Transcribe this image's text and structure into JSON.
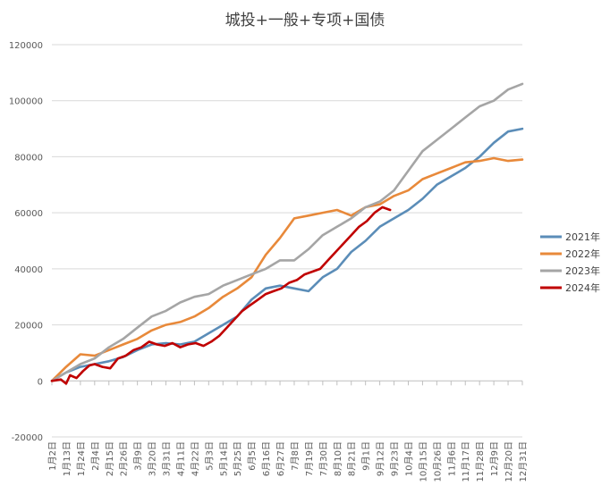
{
  "chart_data": {
    "type": "line",
    "title": "城投+一般+专项+国债",
    "xlabel": "",
    "ylabel": "",
    "ylim": [
      -20000,
      120000
    ],
    "yticks": [
      -20000,
      0,
      20000,
      40000,
      60000,
      80000,
      100000,
      120000
    ],
    "grid": "horizontal",
    "legend_position": "right",
    "x_ticks": [
      "1月2日",
      "1月13日",
      "1月24日",
      "2月4日",
      "2月15日",
      "2月26日",
      "3月9日",
      "3月20日",
      "3月31日",
      "4月11日",
      "4月22日",
      "5月3日",
      "5月14日",
      "5月25日",
      "6月5日",
      "6月16日",
      "6月27日",
      "7月8日",
      "7月19日",
      "7月30日",
      "8月10日",
      "8月21日",
      "9月1日",
      "9月12日",
      "9月23日",
      "10月4日",
      "10月15日",
      "10月26日",
      "11月6日",
      "11月17日",
      "11月28日",
      "12月9日",
      "12月20日",
      "12月31日"
    ],
    "x_tick_day_of_year": [
      1,
      12,
      23,
      34,
      45,
      56,
      67,
      78,
      89,
      100,
      111,
      122,
      133,
      144,
      155,
      166,
      177,
      188,
      199,
      210,
      221,
      232,
      243,
      254,
      265,
      276,
      287,
      298,
      309,
      320,
      331,
      342,
      353,
      364
    ],
    "series": [
      {
        "name": "2021年",
        "color": "#5b8db8",
        "x": [
          1,
          12,
          23,
          34,
          45,
          56,
          67,
          78,
          89,
          100,
          111,
          122,
          133,
          144,
          155,
          166,
          177,
          188,
          199,
          210,
          221,
          232,
          243,
          254,
          265,
          276,
          287,
          298,
          309,
          320,
          331,
          342,
          353,
          364
        ],
        "values": [
          0,
          3000,
          5000,
          6000,
          7000,
          8500,
          11000,
          13000,
          13500,
          13000,
          14000,
          17000,
          20000,
          23000,
          29000,
          33000,
          34000,
          33000,
          32000,
          37000,
          40000,
          46000,
          50000,
          55000,
          58000,
          61000,
          65000,
          70000,
          73000,
          76000,
          80000,
          85000,
          89000,
          90000
        ]
      },
      {
        "name": "2022年",
        "color": "#e8893a",
        "x": [
          1,
          12,
          23,
          34,
          45,
          56,
          67,
          78,
          89,
          100,
          111,
          122,
          133,
          144,
          155,
          166,
          177,
          188,
          199,
          210,
          221,
          232,
          243,
          254,
          265,
          276,
          287,
          298,
          309,
          320,
          331,
          342,
          353,
          364
        ],
        "values": [
          0,
          5000,
          9500,
          9000,
          11000,
          13000,
          15000,
          18000,
          20000,
          21000,
          23000,
          26000,
          30000,
          33000,
          37000,
          45000,
          51000,
          58000,
          59000,
          60000,
          61000,
          59000,
          62000,
          63000,
          66000,
          68000,
          72000,
          74000,
          76000,
          78000,
          78500,
          79500,
          78500,
          79000
        ]
      },
      {
        "name": "2023年",
        "color": "#a5a5a5",
        "x": [
          1,
          12,
          23,
          34,
          45,
          56,
          67,
          78,
          89,
          100,
          111,
          122,
          133,
          144,
          155,
          166,
          177,
          188,
          199,
          210,
          221,
          232,
          243,
          254,
          265,
          276,
          287,
          298,
          309,
          320,
          331,
          342,
          353,
          364
        ],
        "values": [
          0,
          3000,
          6000,
          8000,
          12000,
          15000,
          19000,
          23000,
          25000,
          28000,
          30000,
          31000,
          34000,
          36000,
          38000,
          40000,
          43000,
          43000,
          47000,
          52000,
          55000,
          58000,
          62000,
          64000,
          68000,
          75000,
          82000,
          86000,
          90000,
          94000,
          98000,
          100000,
          104000,
          106000
        ]
      },
      {
        "name": "2024年",
        "color": "#c00000",
        "x": [
          1,
          8,
          12,
          15,
          20,
          25,
          30,
          34,
          40,
          46,
          52,
          58,
          64,
          70,
          76,
          82,
          88,
          94,
          100,
          106,
          112,
          118,
          124,
          130,
          136,
          142,
          148,
          154,
          160,
          166,
          172,
          178,
          184,
          190,
          196,
          202,
          208,
          214,
          220,
          226,
          232,
          238,
          244,
          250,
          256,
          262
        ],
        "values": [
          0,
          500,
          -1000,
          2000,
          1000,
          3500,
          5500,
          6000,
          5000,
          4500,
          8000,
          9000,
          11000,
          12000,
          14000,
          13000,
          12500,
          13500,
          12000,
          13000,
          13500,
          12500,
          14000,
          16000,
          19000,
          22000,
          25000,
          27000,
          29000,
          31000,
          32000,
          33000,
          35000,
          36000,
          38000,
          39000,
          40000,
          43000,
          46000,
          49000,
          52000,
          55000,
          57000,
          60000,
          62000,
          61000
        ]
      }
    ]
  }
}
